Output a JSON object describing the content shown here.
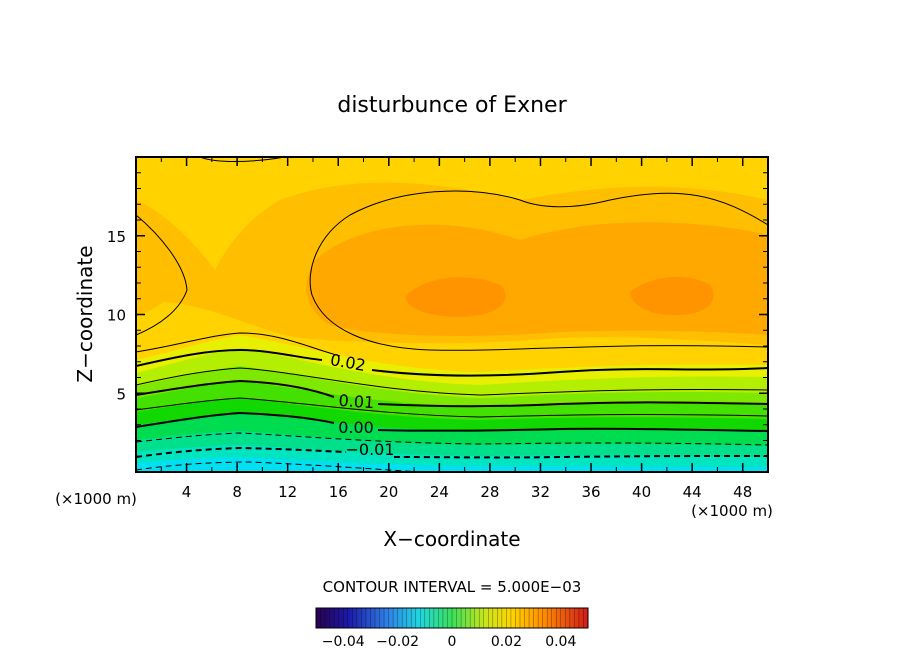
{
  "chart_data": {
    "type": "contour",
    "title": "disturbunce of Exner",
    "xlabel": "X−coordinate",
    "ylabel": "Z−coordinate",
    "x_unit": "(×1000 m)",
    "y_unit": "(×1000 m)",
    "xlim": [
      0,
      50
    ],
    "ylim": [
      0,
      20
    ],
    "x_ticks": [
      {
        "value": 4,
        "label": "4"
      },
      {
        "value": 8,
        "label": "8"
      },
      {
        "value": 12,
        "label": "12"
      },
      {
        "value": 16,
        "label": "16"
      },
      {
        "value": 20,
        "label": "20"
      },
      {
        "value": 24,
        "label": "24"
      },
      {
        "value": 28,
        "label": "28"
      },
      {
        "value": 32,
        "label": "32"
      },
      {
        "value": 36,
        "label": "36"
      },
      {
        "value": 40,
        "label": "40"
      },
      {
        "value": 44,
        "label": "44"
      },
      {
        "value": 48,
        "label": "48"
      }
    ],
    "y_ticks": [
      {
        "value": 5,
        "label": "5"
      },
      {
        "value": 10,
        "label": "10"
      },
      {
        "value": 15,
        "label": "15"
      }
    ],
    "contour_interval_text": "CONTOUR INTERVAL = 5.000E−03",
    "contour_labels": [
      {
        "value": 0.02,
        "label": "0.02",
        "x": 17.0,
        "y": 7.0
      },
      {
        "value": 0.01,
        "label": "0.01",
        "x": 17.5,
        "y": 4.5
      },
      {
        "value": 0.0,
        "label": "0.00",
        "x": 17.5,
        "y": 2.8
      },
      {
        "value": -0.01,
        "label": "−0.01",
        "x": 18.5,
        "y": 1.4
      }
    ],
    "colorbar": {
      "range": [
        -0.05,
        0.05
      ],
      "ticks": [
        {
          "value": -0.04,
          "label": "−0.04"
        },
        {
          "value": -0.02,
          "label": "−0.02"
        },
        {
          "value": 0,
          "label": "0"
        },
        {
          "value": 0.02,
          "label": "0.02"
        },
        {
          "value": 0.04,
          "label": "0.04"
        }
      ]
    }
  }
}
